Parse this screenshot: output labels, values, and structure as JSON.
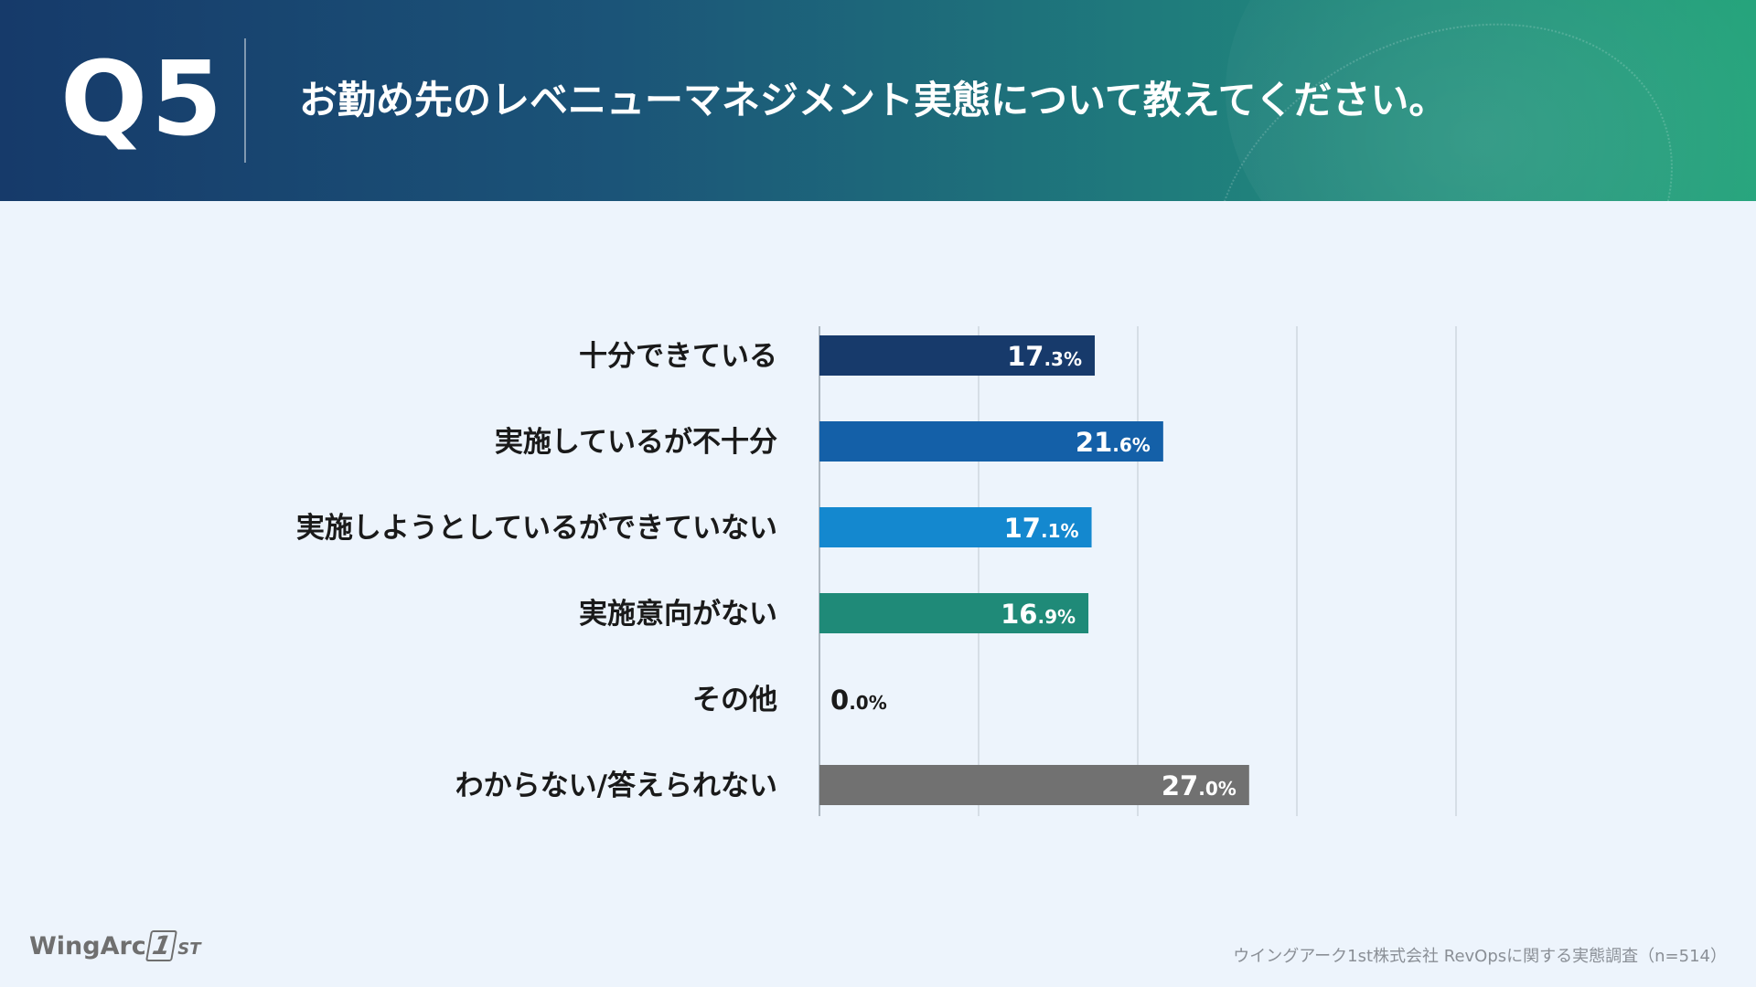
{
  "header": {
    "question_id": "Q5",
    "question_text": "お勤め先のレベニューマネジメント実態について教えてください。"
  },
  "chart_data": {
    "type": "bar",
    "orientation": "horizontal",
    "categories": [
      "十分できている",
      "実施しているが不十分",
      "実施しようとしているができていない",
      "実施意向がない",
      "その他",
      "わからない/答えられない"
    ],
    "values": [
      17.3,
      21.6,
      17.1,
      16.9,
      0.0,
      27.0
    ],
    "value_labels": [
      {
        "int": "17",
        "dec": ".3%"
      },
      {
        "int": "21",
        "dec": ".6%"
      },
      {
        "int": "17",
        "dec": ".1%"
      },
      {
        "int": "16",
        "dec": ".9%"
      },
      {
        "int": "0",
        "dec": ".0%"
      },
      {
        "int": "27",
        "dec": ".0%"
      }
    ],
    "colors": [
      "#173a6b",
      "#1460a8",
      "#1488cf",
      "#1f8a78",
      "#1f8a78",
      "#717171"
    ],
    "xlim": [
      0,
      40
    ],
    "gridlines": [
      10,
      20,
      30,
      40
    ],
    "grid": true,
    "title": "",
    "xlabel": "",
    "ylabel": ""
  },
  "footer": {
    "logo_main": "WingArc",
    "logo_mark": "1",
    "logo_sub": "ST",
    "source": "ウイングアーク1st株式会社 RevOpsに関する実態調査（n=514）"
  }
}
